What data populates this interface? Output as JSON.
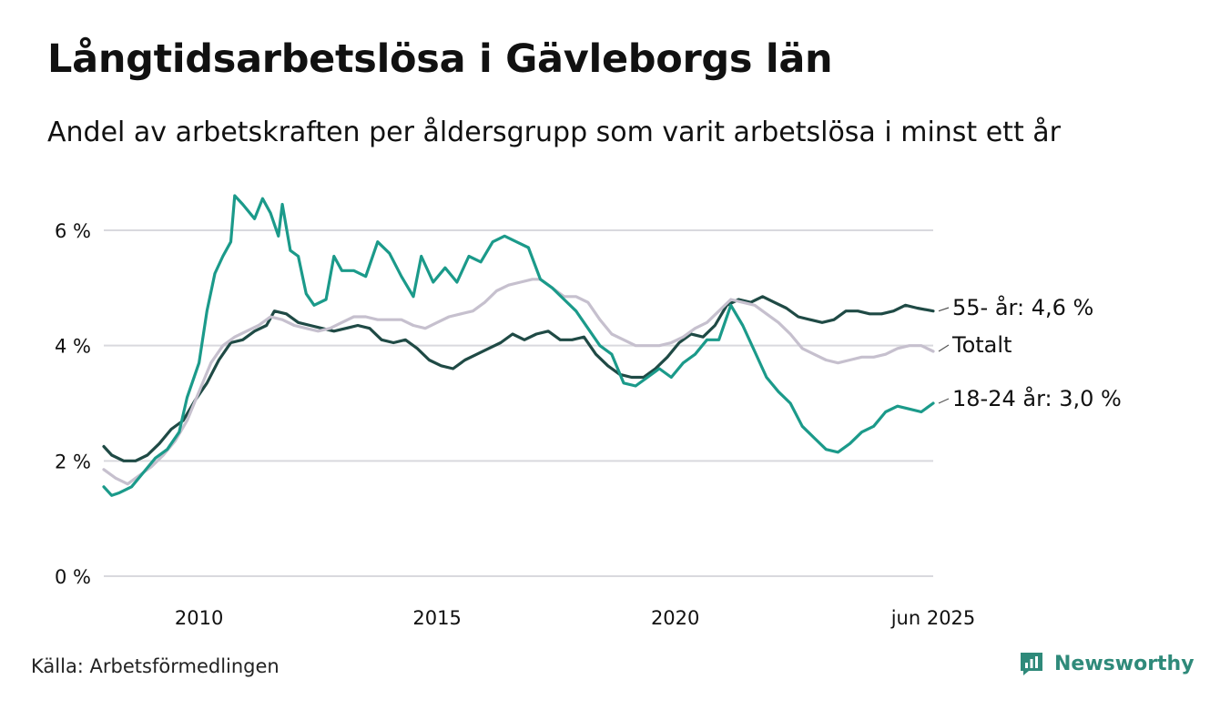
{
  "header": {
    "title": "Långtidsarbetslösa i Gävleborgs län",
    "subtitle": "Andel av arbetskraften per åldersgrupp som varit arbetslösa i minst ett år"
  },
  "footer": {
    "source": "Källa: Arbetsförmedlingen",
    "brand": "Newsworthy",
    "brand_icon": "newsworthy-logo-icon"
  },
  "colors": {
    "youth": "#1b9a8a",
    "senior": "#1f4a45",
    "total": "#c6c0ce",
    "grid": "#d9d9de",
    "brand": "#2f8a7a"
  },
  "chart_data": {
    "type": "line",
    "title": "Långtidsarbetslösa i Gävleborgs län",
    "subtitle": "Andel av arbetskraften per åldersgrupp som varit arbetslösa i minst ett år",
    "xlim": [
      "2008-01",
      "2025-06"
    ],
    "x_ticks": [
      "2010",
      "2015",
      "2020",
      "jun 2025"
    ],
    "y_ticks": [
      "0 %",
      "2 %",
      "4 %",
      "6 %"
    ],
    "ylim": [
      0,
      7
    ],
    "grid": "horizontal",
    "legend": "direct labels at right end",
    "series": [
      {
        "name": "55- år",
        "end_label": "55- år: 4,6 %",
        "color": "#1f4a45",
        "points": [
          [
            "2008-01",
            2.25
          ],
          [
            "2008-03",
            2.1
          ],
          [
            "2008-06",
            2.0
          ],
          [
            "2008-09",
            2.0
          ],
          [
            "2008-12",
            2.1
          ],
          [
            "2009-03",
            2.3
          ],
          [
            "2009-06",
            2.55
          ],
          [
            "2009-09",
            2.7
          ],
          [
            "2009-12",
            3.05
          ],
          [
            "2010-03",
            3.35
          ],
          [
            "2010-06",
            3.75
          ],
          [
            "2010-09",
            4.05
          ],
          [
            "2010-12",
            4.1
          ],
          [
            "2011-03",
            4.25
          ],
          [
            "2011-06",
            4.35
          ],
          [
            "2011-08",
            4.6
          ],
          [
            "2011-11",
            4.55
          ],
          [
            "2012-02",
            4.4
          ],
          [
            "2012-05",
            4.35
          ],
          [
            "2012-08",
            4.3
          ],
          [
            "2012-11",
            4.25
          ],
          [
            "2013-02",
            4.3
          ],
          [
            "2013-05",
            4.35
          ],
          [
            "2013-08",
            4.3
          ],
          [
            "2013-11",
            4.1
          ],
          [
            "2014-02",
            4.05
          ],
          [
            "2014-05",
            4.1
          ],
          [
            "2014-08",
            3.95
          ],
          [
            "2014-11",
            3.75
          ],
          [
            "2015-02",
            3.65
          ],
          [
            "2015-05",
            3.6
          ],
          [
            "2015-08",
            3.75
          ],
          [
            "2015-11",
            3.85
          ],
          [
            "2016-02",
            3.95
          ],
          [
            "2016-05",
            4.05
          ],
          [
            "2016-08",
            4.2
          ],
          [
            "2016-11",
            4.1
          ],
          [
            "2017-02",
            4.2
          ],
          [
            "2017-05",
            4.25
          ],
          [
            "2017-08",
            4.1
          ],
          [
            "2017-11",
            4.1
          ],
          [
            "2018-02",
            4.15
          ],
          [
            "2018-05",
            3.85
          ],
          [
            "2018-08",
            3.65
          ],
          [
            "2018-11",
            3.5
          ],
          [
            "2019-02",
            3.45
          ],
          [
            "2019-05",
            3.45
          ],
          [
            "2019-08",
            3.6
          ],
          [
            "2019-11",
            3.8
          ],
          [
            "2020-02",
            4.05
          ],
          [
            "2020-05",
            4.2
          ],
          [
            "2020-08",
            4.15
          ],
          [
            "2020-11",
            4.35
          ],
          [
            "2021-02",
            4.7
          ],
          [
            "2021-05",
            4.8
          ],
          [
            "2021-08",
            4.75
          ],
          [
            "2021-11",
            4.85
          ],
          [
            "2022-02",
            4.75
          ],
          [
            "2022-05",
            4.65
          ],
          [
            "2022-08",
            4.5
          ],
          [
            "2022-11",
            4.45
          ],
          [
            "2023-02",
            4.4
          ],
          [
            "2023-05",
            4.45
          ],
          [
            "2023-08",
            4.6
          ],
          [
            "2023-11",
            4.6
          ],
          [
            "2024-02",
            4.55
          ],
          [
            "2024-05",
            4.55
          ],
          [
            "2024-08",
            4.6
          ],
          [
            "2024-11",
            4.7
          ],
          [
            "2025-02",
            4.65
          ],
          [
            "2025-06",
            4.6
          ]
        ]
      },
      {
        "name": "Totalt",
        "end_label": "Totalt",
        "color": "#c6c0ce",
        "points": [
          [
            "2008-01",
            1.85
          ],
          [
            "2008-04",
            1.7
          ],
          [
            "2008-07",
            1.6
          ],
          [
            "2008-10",
            1.75
          ],
          [
            "2009-01",
            1.9
          ],
          [
            "2009-04",
            2.1
          ],
          [
            "2009-07",
            2.35
          ],
          [
            "2009-10",
            2.7
          ],
          [
            "2010-01",
            3.2
          ],
          [
            "2010-04",
            3.7
          ],
          [
            "2010-07",
            4.0
          ],
          [
            "2010-10",
            4.15
          ],
          [
            "2011-01",
            4.25
          ],
          [
            "2011-04",
            4.35
          ],
          [
            "2011-07",
            4.5
          ],
          [
            "2011-10",
            4.45
          ],
          [
            "2012-01",
            4.35
          ],
          [
            "2012-04",
            4.3
          ],
          [
            "2012-07",
            4.25
          ],
          [
            "2012-10",
            4.3
          ],
          [
            "2013-01",
            4.4
          ],
          [
            "2013-04",
            4.5
          ],
          [
            "2013-07",
            4.5
          ],
          [
            "2013-10",
            4.45
          ],
          [
            "2014-01",
            4.45
          ],
          [
            "2014-04",
            4.45
          ],
          [
            "2014-07",
            4.35
          ],
          [
            "2014-10",
            4.3
          ],
          [
            "2015-01",
            4.4
          ],
          [
            "2015-04",
            4.5
          ],
          [
            "2015-07",
            4.55
          ],
          [
            "2015-10",
            4.6
          ],
          [
            "2016-01",
            4.75
          ],
          [
            "2016-04",
            4.95
          ],
          [
            "2016-07",
            5.05
          ],
          [
            "2016-10",
            5.1
          ],
          [
            "2017-01",
            5.15
          ],
          [
            "2017-03",
            5.15
          ],
          [
            "2017-06",
            5.0
          ],
          [
            "2017-09",
            4.85
          ],
          [
            "2017-12",
            4.85
          ],
          [
            "2018-03",
            4.75
          ],
          [
            "2018-06",
            4.45
          ],
          [
            "2018-09",
            4.2
          ],
          [
            "2018-12",
            4.1
          ],
          [
            "2019-03",
            4.0
          ],
          [
            "2019-06",
            4.0
          ],
          [
            "2019-09",
            4.0
          ],
          [
            "2019-12",
            4.05
          ],
          [
            "2020-03",
            4.15
          ],
          [
            "2020-06",
            4.3
          ],
          [
            "2020-09",
            4.4
          ],
          [
            "2020-12",
            4.6
          ],
          [
            "2021-03",
            4.8
          ],
          [
            "2021-06",
            4.75
          ],
          [
            "2021-09",
            4.7
          ],
          [
            "2021-12",
            4.55
          ],
          [
            "2022-03",
            4.4
          ],
          [
            "2022-06",
            4.2
          ],
          [
            "2022-09",
            3.95
          ],
          [
            "2022-12",
            3.85
          ],
          [
            "2023-03",
            3.75
          ],
          [
            "2023-06",
            3.7
          ],
          [
            "2023-09",
            3.75
          ],
          [
            "2023-12",
            3.8
          ],
          [
            "2024-03",
            3.8
          ],
          [
            "2024-06",
            3.85
          ],
          [
            "2024-09",
            3.95
          ],
          [
            "2024-12",
            4.0
          ],
          [
            "2025-03",
            4.0
          ],
          [
            "2025-06",
            3.9
          ]
        ]
      },
      {
        "name": "18-24 år",
        "end_label": "18-24 år: 3,0 %",
        "color": "#1b9a8a",
        "points": [
          [
            "2008-01",
            1.55
          ],
          [
            "2008-03",
            1.4
          ],
          [
            "2008-05",
            1.45
          ],
          [
            "2008-08",
            1.55
          ],
          [
            "2008-11",
            1.8
          ],
          [
            "2009-02",
            2.05
          ],
          [
            "2009-05",
            2.2
          ],
          [
            "2009-08",
            2.5
          ],
          [
            "2009-10",
            3.1
          ],
          [
            "2010-01",
            3.7
          ],
          [
            "2010-03",
            4.6
          ],
          [
            "2010-05",
            5.25
          ],
          [
            "2010-07",
            5.55
          ],
          [
            "2010-09",
            5.8
          ],
          [
            "2010-10",
            6.6
          ],
          [
            "2010-12",
            6.45
          ],
          [
            "2011-03",
            6.2
          ],
          [
            "2011-05",
            6.55
          ],
          [
            "2011-07",
            6.3
          ],
          [
            "2011-09",
            5.9
          ],
          [
            "2011-10",
            6.45
          ],
          [
            "2011-12",
            5.65
          ],
          [
            "2012-02",
            5.55
          ],
          [
            "2012-04",
            4.9
          ],
          [
            "2012-06",
            4.7
          ],
          [
            "2012-09",
            4.8
          ],
          [
            "2012-11",
            5.55
          ],
          [
            "2013-01",
            5.3
          ],
          [
            "2013-04",
            5.3
          ],
          [
            "2013-07",
            5.2
          ],
          [
            "2013-10",
            5.8
          ],
          [
            "2014-01",
            5.6
          ],
          [
            "2014-04",
            5.2
          ],
          [
            "2014-07",
            4.85
          ],
          [
            "2014-09",
            5.55
          ],
          [
            "2014-12",
            5.1
          ],
          [
            "2015-03",
            5.35
          ],
          [
            "2015-06",
            5.1
          ],
          [
            "2015-09",
            5.55
          ],
          [
            "2015-12",
            5.45
          ],
          [
            "2016-03",
            5.8
          ],
          [
            "2016-06",
            5.9
          ],
          [
            "2016-09",
            5.8
          ],
          [
            "2016-12",
            5.7
          ],
          [
            "2017-03",
            5.15
          ],
          [
            "2017-06",
            5.0
          ],
          [
            "2017-09",
            4.8
          ],
          [
            "2017-12",
            4.6
          ],
          [
            "2018-03",
            4.3
          ],
          [
            "2018-06",
            4.0
          ],
          [
            "2018-09",
            3.85
          ],
          [
            "2018-12",
            3.35
          ],
          [
            "2019-03",
            3.3
          ],
          [
            "2019-06",
            3.45
          ],
          [
            "2019-09",
            3.6
          ],
          [
            "2019-12",
            3.45
          ],
          [
            "2020-03",
            3.7
          ],
          [
            "2020-06",
            3.85
          ],
          [
            "2020-09",
            4.1
          ],
          [
            "2020-12",
            4.1
          ],
          [
            "2021-03",
            4.7
          ],
          [
            "2021-06",
            4.35
          ],
          [
            "2021-09",
            3.9
          ],
          [
            "2021-12",
            3.45
          ],
          [
            "2022-03",
            3.2
          ],
          [
            "2022-06",
            3.0
          ],
          [
            "2022-09",
            2.6
          ],
          [
            "2022-12",
            2.4
          ],
          [
            "2023-03",
            2.2
          ],
          [
            "2023-06",
            2.15
          ],
          [
            "2023-09",
            2.3
          ],
          [
            "2023-12",
            2.5
          ],
          [
            "2024-03",
            2.6
          ],
          [
            "2024-06",
            2.85
          ],
          [
            "2024-09",
            2.95
          ],
          [
            "2024-12",
            2.9
          ],
          [
            "2025-03",
            2.85
          ],
          [
            "2025-06",
            3.0
          ]
        ]
      }
    ]
  }
}
